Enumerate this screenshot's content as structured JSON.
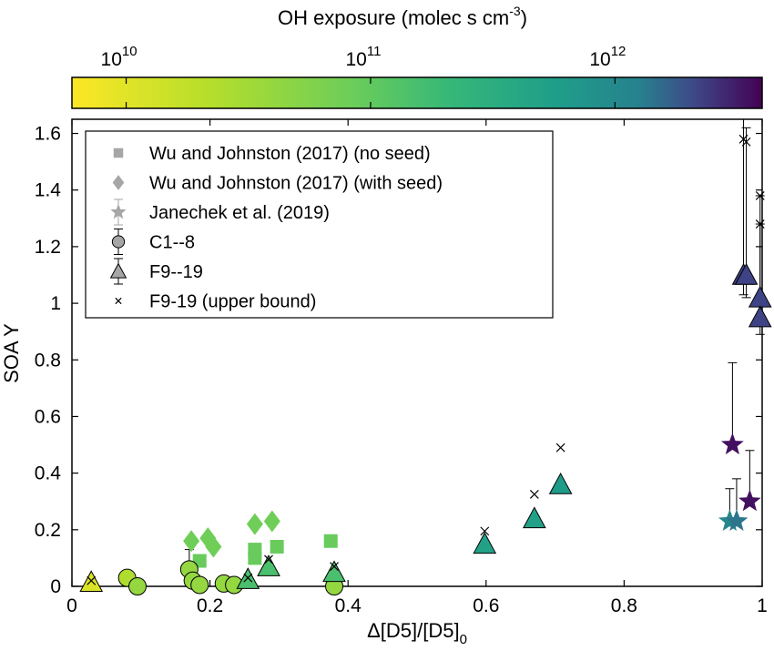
{
  "chart_data": {
    "type": "scatter",
    "colorbar": {
      "title": "OH exposure (molec s cm",
      "title_sup": "-3",
      "title_close": ")",
      "scale": "log",
      "range": [
        6000000000.0,
        4000000000000.0
      ],
      "ticks": [
        10000000000.0,
        100000000000.0,
        1000000000000.0
      ],
      "tick_labels": [
        {
          "base": "10",
          "exp": "10"
        },
        {
          "base": "10",
          "exp": "11"
        },
        {
          "base": "10",
          "exp": "12"
        }
      ],
      "colormap": "viridis-reversed"
    },
    "xlabel_prefix": "Δ[D5]/[D5]",
    "xlabel_sub": "0",
    "ylabel": "SOA Y",
    "xlim": [
      0,
      1
    ],
    "ylim": [
      0,
      1.65
    ],
    "xticks": [
      0,
      0.2,
      0.4,
      0.6,
      0.8,
      1
    ],
    "xtick_labels": [
      "0",
      "0.2",
      "0.4",
      "0.6",
      "0.8",
      "1"
    ],
    "yticks": [
      0,
      0.2,
      0.4,
      0.6,
      0.8,
      1,
      1.2,
      1.4,
      1.6
    ],
    "ytick_labels": [
      "0",
      "0.2",
      "0.4",
      "0.6",
      "0.8",
      "1",
      "1.2",
      "1.4",
      "1.6"
    ],
    "grid": false,
    "legend_position": "top-left",
    "legend": [
      {
        "label": "Wu and Johnston (2017) (no seed)",
        "marker": "square"
      },
      {
        "label": "Wu and Johnston (2017) (with seed)",
        "marker": "diamond"
      },
      {
        "label": "Janechek et al. (2019)",
        "marker": "star"
      },
      {
        "label": "C1--8",
        "marker": "circle"
      },
      {
        "label": "F9--19",
        "marker": "triangle"
      },
      {
        "label": "F9-19 (upper bound)",
        "marker": "x"
      }
    ],
    "colors": {
      "legend_marker": "#a6a6a6",
      "errorbar": "#000000"
    },
    "series": [
      {
        "name": "Wu and Johnston (2017) (no seed)",
        "marker": "square",
        "points": [
          {
            "x": 0.185,
            "y": 0.09,
            "oh": 90000000000.0
          },
          {
            "x": 0.265,
            "y": 0.1,
            "oh": 90000000000.0
          },
          {
            "x": 0.265,
            "y": 0.13,
            "oh": 90000000000.0
          },
          {
            "x": 0.297,
            "y": 0.14,
            "oh": 90000000000.0
          },
          {
            "x": 0.375,
            "y": 0.16,
            "oh": 90000000000.0
          }
        ]
      },
      {
        "name": "Wu and Johnston (2017) (with seed)",
        "marker": "diamond",
        "points": [
          {
            "x": 0.173,
            "y": 0.16,
            "oh": 80000000000.0
          },
          {
            "x": 0.197,
            "y": 0.17,
            "oh": 80000000000.0
          },
          {
            "x": 0.205,
            "y": 0.14,
            "oh": 80000000000.0
          },
          {
            "x": 0.265,
            "y": 0.22,
            "oh": 80000000000.0
          },
          {
            "x": 0.29,
            "y": 0.23,
            "oh": 80000000000.0
          }
        ]
      },
      {
        "name": "Janechek et al. (2019)",
        "marker": "star",
        "points": [
          {
            "x": 0.953,
            "y": 0.23,
            "oh": 1100000000000.0,
            "err_up": 0.115
          },
          {
            "x": 0.963,
            "y": 0.23,
            "oh": 1400000000000.0,
            "err_up": 0.15
          },
          {
            "x": 0.957,
            "y": 0.5,
            "oh": 3500000000000.0,
            "err_up": 0.29
          },
          {
            "x": 0.982,
            "y": 0.3,
            "oh": 3500000000000.0,
            "err_up": 0.18
          }
        ]
      },
      {
        "name": "C1--8",
        "marker": "circle",
        "points": [
          {
            "x": 0.08,
            "y": 0.03,
            "oh": 25000000000.0,
            "err_up": 0.025
          },
          {
            "x": 0.095,
            "y": 0.0,
            "oh": 40000000000.0
          },
          {
            "x": 0.17,
            "y": 0.06,
            "oh": 40000000000.0,
            "err_up": 0.07
          },
          {
            "x": 0.175,
            "y": 0.02,
            "oh": 40000000000.0
          },
          {
            "x": 0.185,
            "y": 0.005,
            "oh": 40000000000.0
          },
          {
            "x": 0.22,
            "y": 0.01,
            "oh": 40000000000.0,
            "err_up": 0.01
          },
          {
            "x": 0.235,
            "y": 0.005,
            "oh": 40000000000.0
          },
          {
            "x": 0.38,
            "y": 0.0,
            "oh": 40000000000.0
          }
        ]
      },
      {
        "name": "F9--19",
        "marker": "triangle",
        "points": [
          {
            "x": 0.028,
            "y": 0.015,
            "oh": 11000000000.0
          },
          {
            "x": 0.255,
            "y": 0.025,
            "oh": 150000000000.0
          },
          {
            "x": 0.285,
            "y": 0.07,
            "oh": 150000000000.0
          },
          {
            "x": 0.38,
            "y": 0.05,
            "oh": 150000000000.0
          },
          {
            "x": 0.598,
            "y": 0.15,
            "oh": 500000000000.0
          },
          {
            "x": 0.67,
            "y": 0.24,
            "oh": 500000000000.0
          },
          {
            "x": 0.708,
            "y": 0.36,
            "oh": 600000000000.0
          },
          {
            "x": 0.973,
            "y": 1.1,
            "oh": 2200000000000.0,
            "err_up": 0.55,
            "err_dn": 0.07
          },
          {
            "x": 0.977,
            "y": 1.1,
            "oh": 2200000000000.0,
            "err_up": 0.52,
            "err_dn": 0.08
          },
          {
            "x": 0.997,
            "y": 1.02,
            "oh": 2200000000000.0,
            "err_up": 0.36,
            "err_dn": 0.07
          },
          {
            "x": 0.997,
            "y": 0.95,
            "oh": 2200000000000.0,
            "err_up": 0.33,
            "err_dn": 0.06
          }
        ]
      },
      {
        "name": "F9-19 (upper bound)",
        "marker": "x",
        "points": [
          {
            "x": 0.028,
            "y": 0.02
          },
          {
            "x": 0.255,
            "y": 0.03
          },
          {
            "x": 0.285,
            "y": 0.095
          },
          {
            "x": 0.38,
            "y": 0.07
          },
          {
            "x": 0.598,
            "y": 0.195
          },
          {
            "x": 0.67,
            "y": 0.325
          },
          {
            "x": 0.708,
            "y": 0.49
          },
          {
            "x": 0.973,
            "y": 1.58
          },
          {
            "x": 0.977,
            "y": 1.57
          },
          {
            "x": 0.997,
            "y": 1.38
          },
          {
            "x": 0.997,
            "y": 1.28
          }
        ]
      }
    ]
  }
}
